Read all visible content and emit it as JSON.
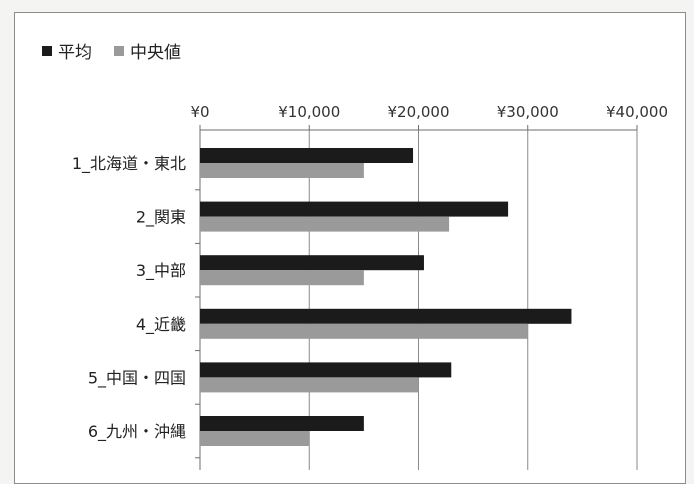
{
  "chart_data": {
    "type": "bar",
    "orientation": "horizontal",
    "categories": [
      "1_北海道・東北",
      "2_関東",
      "3_中部",
      "4_近畿",
      "5_中国・四国",
      "6_九州・沖縄"
    ],
    "series": [
      {
        "name": "平均",
        "values": [
          19500,
          28200,
          20500,
          34000,
          23000,
          15000
        ]
      },
      {
        "name": "中央値",
        "values": [
          15000,
          22800,
          15000,
          30000,
          20000,
          10000
        ]
      }
    ],
    "x_ticks": [
      "¥0",
      "¥10,000",
      "¥20,000",
      "¥30,000",
      "¥40,000"
    ],
    "xlim": [
      0,
      40000
    ],
    "x_axis_position": "top",
    "legend": "top-left",
    "grid": true
  },
  "colors": {
    "series_0": "#1b1b1b",
    "series_1": "#9a9a9a"
  }
}
